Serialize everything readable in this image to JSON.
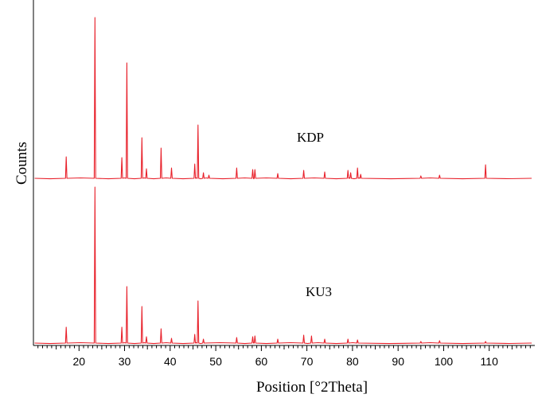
{
  "chart_data": {
    "type": "line",
    "xlabel": "Position [°2Theta]",
    "ylabel": "Counts",
    "xlim": [
      10,
      120
    ],
    "xticks": [
      20,
      30,
      40,
      50,
      60,
      70,
      80,
      90,
      100,
      110
    ],
    "grid": false,
    "line_color": "#e8202a",
    "series": [
      {
        "name": "KDP",
        "baseline": 0,
        "peaks": [
          {
            "x": 17.2,
            "y": 27
          },
          {
            "x": 23.5,
            "y": 202
          },
          {
            "x": 29.4,
            "y": 26
          },
          {
            "x": 30.5,
            "y": 145
          },
          {
            "x": 33.8,
            "y": 51
          },
          {
            "x": 34.8,
            "y": 12
          },
          {
            "x": 38.0,
            "y": 38
          },
          {
            "x": 40.3,
            "y": 13
          },
          {
            "x": 45.4,
            "y": 18
          },
          {
            "x": 46.1,
            "y": 67
          },
          {
            "x": 47.3,
            "y": 7
          },
          {
            "x": 48.5,
            "y": 4
          },
          {
            "x": 54.6,
            "y": 13
          },
          {
            "x": 58.1,
            "y": 11
          },
          {
            "x": 58.6,
            "y": 11
          },
          {
            "x": 63.6,
            "y": 6
          },
          {
            "x": 69.3,
            "y": 10
          },
          {
            "x": 73.9,
            "y": 8
          },
          {
            "x": 79.0,
            "y": 10
          },
          {
            "x": 79.6,
            "y": 7
          },
          {
            "x": 81.1,
            "y": 13
          },
          {
            "x": 81.8,
            "y": 5
          },
          {
            "x": 95.0,
            "y": 3
          },
          {
            "x": 99.1,
            "y": 4
          },
          {
            "x": 109.2,
            "y": 17
          }
        ]
      },
      {
        "name": "KU3",
        "baseline": 0,
        "peaks": [
          {
            "x": 17.2,
            "y": 20
          },
          {
            "x": 23.5,
            "y": 196
          },
          {
            "x": 29.4,
            "y": 20
          },
          {
            "x": 30.5,
            "y": 71
          },
          {
            "x": 33.8,
            "y": 46
          },
          {
            "x": 34.8,
            "y": 8
          },
          {
            "x": 38.0,
            "y": 18
          },
          {
            "x": 40.3,
            "y": 6
          },
          {
            "x": 45.4,
            "y": 11
          },
          {
            "x": 46.1,
            "y": 53
          },
          {
            "x": 47.3,
            "y": 5
          },
          {
            "x": 54.6,
            "y": 7
          },
          {
            "x": 58.1,
            "y": 8
          },
          {
            "x": 58.6,
            "y": 9
          },
          {
            "x": 63.6,
            "y": 5
          },
          {
            "x": 69.3,
            "y": 10
          },
          {
            "x": 71.0,
            "y": 9
          },
          {
            "x": 73.9,
            "y": 5
          },
          {
            "x": 79.0,
            "y": 5
          },
          {
            "x": 81.1,
            "y": 4
          },
          {
            "x": 95.0,
            "y": 2
          },
          {
            "x": 99.1,
            "y": 3
          },
          {
            "x": 109.2,
            "y": 2
          }
        ]
      }
    ]
  }
}
